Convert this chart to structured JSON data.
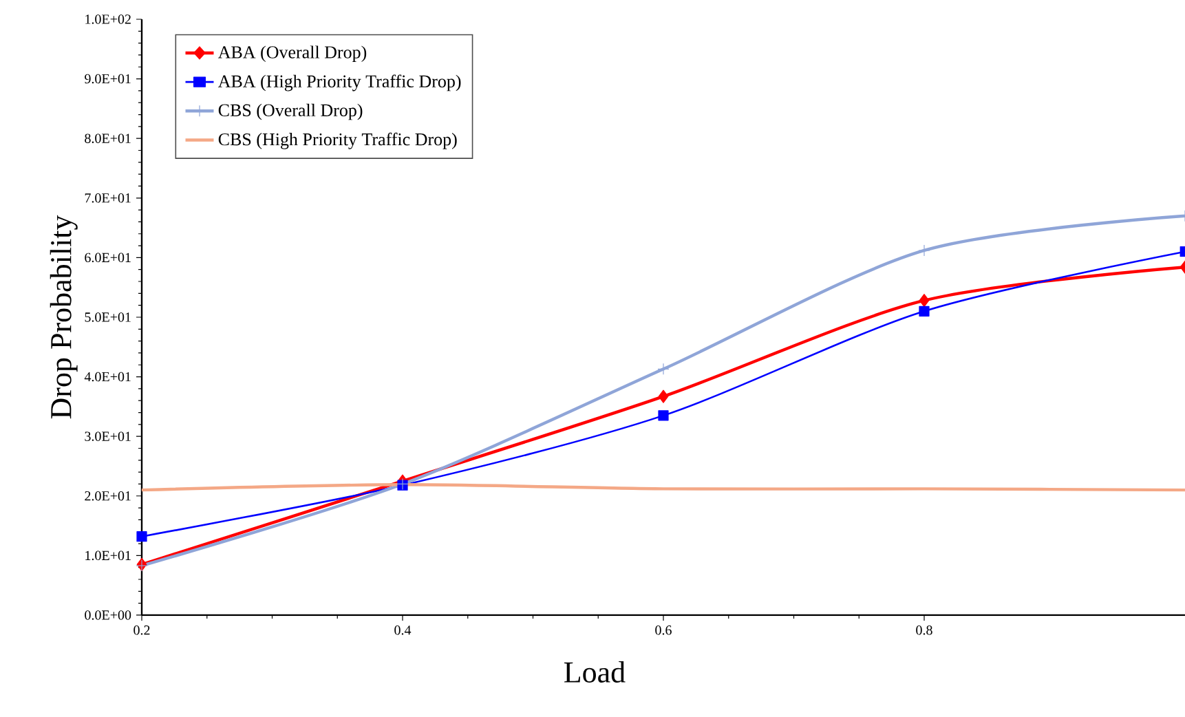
{
  "chart_data": {
    "type": "line",
    "xlabel": "Load",
    "ylabel": "Drop Probability",
    "x": [
      0.2,
      0.4,
      0.6,
      0.8,
      1.0
    ],
    "xlim": [
      0.2,
      1.0
    ],
    "xticks": [
      0.2,
      0.4,
      0.6,
      0.8
    ],
    "ylim": [
      0,
      100
    ],
    "yticks": [
      {
        "value": 0,
        "label": "0.0E+00"
      },
      {
        "value": 10,
        "label": "1.0E+01"
      },
      {
        "value": 20,
        "label": "2.0E+01"
      },
      {
        "value": 30,
        "label": "3.0E+01"
      },
      {
        "value": 40,
        "label": "4.0E+01"
      },
      {
        "value": 50,
        "label": "5.0E+01"
      },
      {
        "value": 60,
        "label": "6.0E+01"
      },
      {
        "value": 70,
        "label": "7.0E+01"
      },
      {
        "value": 80,
        "label": "8.0E+01"
      },
      {
        "value": 90,
        "label": "9.0E+01"
      },
      {
        "value": 100,
        "label": "1.0E+02"
      }
    ],
    "legend": "top left",
    "grid": false,
    "series": [
      {
        "name": "ABA (Overall Drop)",
        "color": "#ff0000",
        "marker": "diamond",
        "values": [
          8.5,
          22.5,
          36.7,
          52.8,
          58.4
        ]
      },
      {
        "name": "ABA (High Priority Traffic Drop)",
        "color": "#0000ff",
        "marker": "square",
        "values": [
          13.2,
          21.8,
          33.5,
          51.0,
          61.0
        ]
      },
      {
        "name": "CBS (Overall Drop)",
        "color": "#8fa5d8",
        "marker": "cross",
        "values": [
          8.3,
          22.0,
          41.3,
          61.2,
          67.0
        ]
      },
      {
        "name": "CBS (High Priority Traffic Drop)",
        "color": "#f4a886",
        "marker": "none",
        "values": [
          21.0,
          21.9,
          21.2,
          21.2,
          21.0
        ]
      }
    ]
  }
}
